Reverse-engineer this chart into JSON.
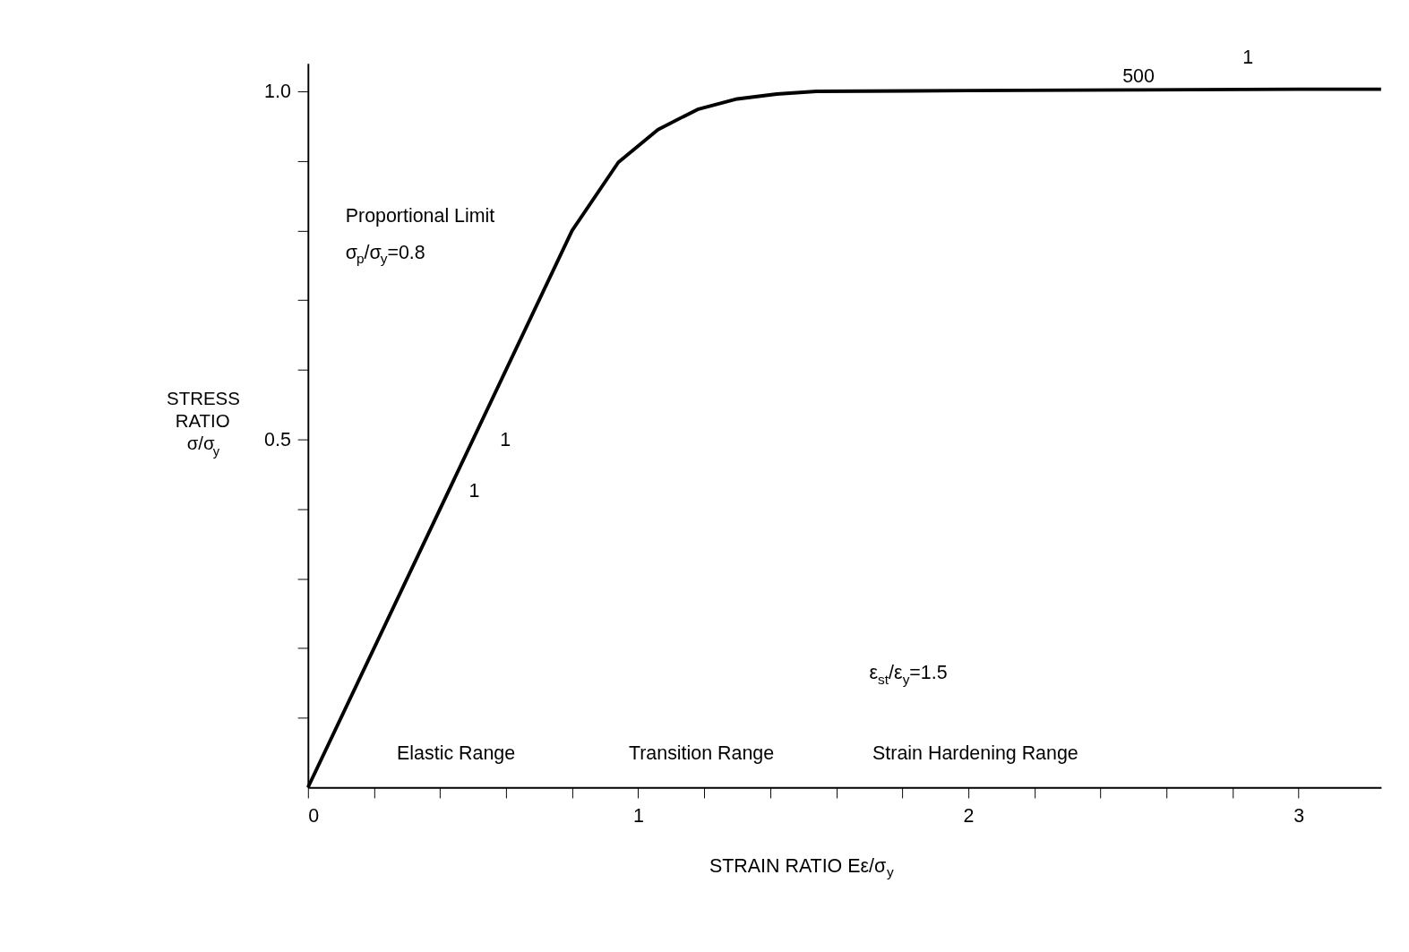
{
  "chart_data": {
    "type": "line",
    "xlabel": "STRAIN RATIO Eε/σ$_{y}$",
    "ylabel": "STRESS RATIO σ/σ$_{y}$",
    "x": [
      0,
      0.8,
      0.94,
      1.06,
      1.18,
      1.3,
      1.42,
      1.54,
      2.0,
      2.5,
      3.0,
      3.25
    ],
    "series": [
      {
        "color": "#000000",
        "values": [
          0,
          0.8,
          0.898,
          0.945,
          0.974,
          0.989,
          0.996,
          1.0,
          1.001,
          1.002,
          1.003,
          1.003
        ]
      }
    ],
    "xlim": [
      0,
      3.25
    ],
    "ylim": [
      0,
      1.04
    ],
    "xticks": [
      0,
      {
        "value": 0.2,
        "label": null
      },
      {
        "value": 0.4,
        "label": null
      },
      {
        "value": 0.6,
        "label": null
      },
      {
        "value": 0.8,
        "label": null
      },
      1,
      {
        "value": 1.2,
        "label": null
      },
      {
        "value": 1.4,
        "label": null
      },
      {
        "value": 1.6,
        "label": null
      },
      {
        "value": 1.8,
        "label": null
      },
      2,
      {
        "value": 2.2,
        "label": null
      },
      {
        "value": 2.4,
        "label": null
      },
      {
        "value": 2.6,
        "label": null
      },
      {
        "value": 2.8,
        "label": null
      },
      3
    ],
    "yticks": [
      {
        "value": 0.1,
        "label": null
      },
      {
        "value": 0.2,
        "label": null
      },
      {
        "value": 0.3,
        "label": null
      },
      {
        "value": 0.4,
        "label": null
      },
      0.5,
      {
        "value": 0.6,
        "label": null
      },
      {
        "value": 0.7,
        "label": null
      },
      {
        "value": 0.8,
        "label": null
      },
      {
        "value": 0.9,
        "label": null
      },
      {
        "value": 1.0,
        "label": "1.0"
      }
    ],
    "annotations": [
      "Proportional Limit",
      "σ$_{p}$/σ$_{y}$=0.8",
      "ε$_{st}$/ε$_{y}$=1.5",
      "Elastic Range",
      "Transition Range",
      "Strain Hardening Range",
      "1",
      "1",
      "500",
      "1"
    ],
    "grid": false,
    "marker": "none",
    "line_style": "solid"
  }
}
